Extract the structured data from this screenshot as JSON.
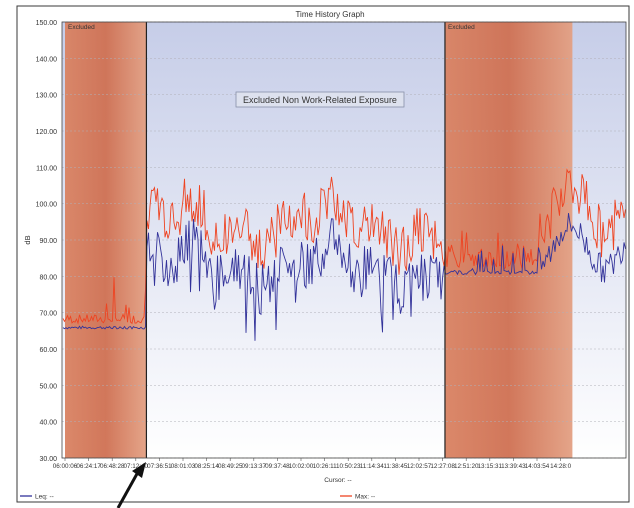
{
  "chart_data": {
    "type": "line",
    "title": "Time History Graph",
    "ylabel": "dB",
    "cursor_label": "Cursor: --",
    "annotation": "Excluded Non Work-Related Exposure",
    "excluded_label": "Excluded",
    "ylim": [
      30,
      150
    ],
    "yticks": [
      "150.00",
      "140.00",
      "130.00",
      "120.00",
      "110.00",
      "100.00",
      "90.00",
      "80.00",
      "70.00",
      "60.00",
      "50.00",
      "40.00",
      "30.00"
    ],
    "xticks": [
      "06:00:06",
      "06:24:17",
      "06:48:28",
      "07:12:40",
      "07:36:51",
      "08:01:03",
      "08:25:14",
      "08:49:25",
      "09:13:37",
      "09:37:48",
      "10:02:00",
      "10:26:11",
      "10:50:23",
      "11:14:34",
      "11:38:45",
      "12:02:57",
      "12:27:08",
      "12:51:20",
      "13:15:31",
      "13:39:43",
      "14:03:54",
      "14:28:0"
    ],
    "excluded_regions": [
      {
        "label": "Excluded",
        "from_tick": 0,
        "to_tick": 3.45
      },
      {
        "label": "Excluded",
        "from_tick": 16.1,
        "to_tick": 21.5
      }
    ],
    "series": [
      {
        "name": "Leq",
        "legend_text": "Leq: --",
        "color": "#33339a"
      },
      {
        "name": "Max",
        "legend_text": "Max: --",
        "color": "#ee4422"
      }
    ],
    "grid": true
  }
}
